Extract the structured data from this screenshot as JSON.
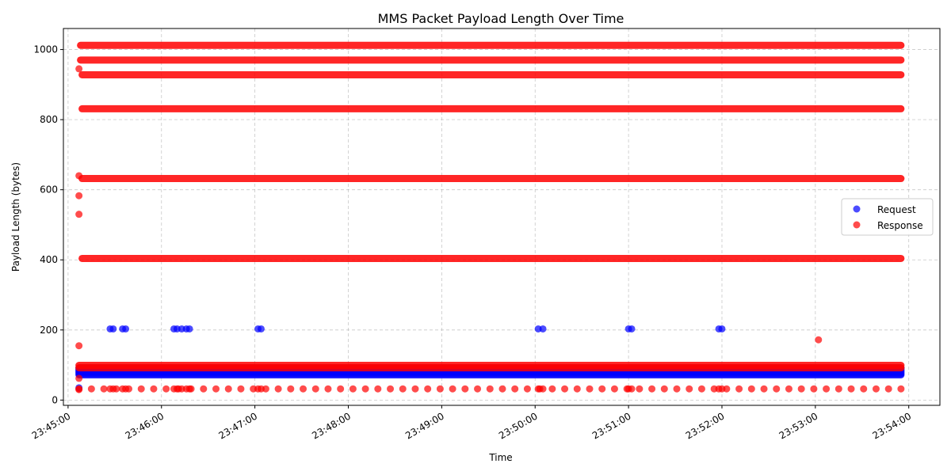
{
  "chart_data": {
    "type": "scatter",
    "title": "MMS Packet Payload Length Over Time",
    "xlabel": "Time",
    "ylabel": "Payload Length (bytes)",
    "xlim": [
      "23:44:57",
      "23:54:20"
    ],
    "ylim": [
      -15,
      1060
    ],
    "x_ticks": [
      "23:45:00",
      "23:46:00",
      "23:47:00",
      "23:48:00",
      "23:49:00",
      "23:50:00",
      "23:51:00",
      "23:52:00",
      "23:53:00",
      "23:54:00"
    ],
    "y_ticks": [
      0,
      200,
      400,
      600,
      800,
      1000
    ],
    "grid": true,
    "legend_position": "center-right",
    "time_range": {
      "start": "23:45:07",
      "end": "23:53:55"
    },
    "series": [
      {
        "name": "Request",
        "color": "#0000ff",
        "alpha": 0.7,
        "bands": [
          {
            "y": 72,
            "start": "23:45:07",
            "end": "23:53:55"
          },
          {
            "y": 76,
            "start": "23:45:07",
            "end": "23:53:55"
          },
          {
            "y": 80,
            "start": "23:45:07",
            "end": "23:53:55"
          },
          {
            "y": 84,
            "start": "23:45:07",
            "end": "23:53:55"
          },
          {
            "y": 88,
            "start": "23:45:07",
            "end": "23:53:55"
          },
          {
            "y": 92,
            "start": "23:45:07",
            "end": "23:53:55"
          }
        ],
        "points": [
          {
            "x": "23:45:07",
            "y": 35
          },
          {
            "x": "23:45:27",
            "y": 203
          },
          {
            "x": "23:45:29",
            "y": 203
          },
          {
            "x": "23:45:35",
            "y": 203
          },
          {
            "x": "23:45:37",
            "y": 203
          },
          {
            "x": "23:46:08",
            "y": 203
          },
          {
            "x": "23:46:10",
            "y": 203
          },
          {
            "x": "23:46:13",
            "y": 203
          },
          {
            "x": "23:46:16",
            "y": 203
          },
          {
            "x": "23:46:18",
            "y": 203
          },
          {
            "x": "23:47:02",
            "y": 203
          },
          {
            "x": "23:47:04",
            "y": 203
          },
          {
            "x": "23:50:02",
            "y": 203
          },
          {
            "x": "23:50:05",
            "y": 203
          },
          {
            "x": "23:51:00",
            "y": 203
          },
          {
            "x": "23:51:02",
            "y": 203
          },
          {
            "x": "23:51:58",
            "y": 203
          },
          {
            "x": "23:52:00",
            "y": 203
          }
        ]
      },
      {
        "name": "Response",
        "color": "#ff0000",
        "alpha": 0.7,
        "bands": [
          {
            "y": 1012,
            "start": "23:45:08",
            "end": "23:53:55"
          },
          {
            "y": 970,
            "start": "23:45:08",
            "end": "23:53:55"
          },
          {
            "y": 928,
            "start": "23:45:09",
            "end": "23:53:55"
          },
          {
            "y": 831,
            "start": "23:45:09",
            "end": "23:53:55"
          },
          {
            "y": 632,
            "start": "23:45:09",
            "end": "23:53:55"
          },
          {
            "y": 404,
            "start": "23:45:09",
            "end": "23:53:55"
          },
          {
            "y": 99,
            "start": "23:45:07",
            "end": "23:53:55"
          },
          {
            "y": 92,
            "start": "23:45:07",
            "end": "23:53:55"
          }
        ],
        "dashes": [
          {
            "y": 32,
            "start": "23:45:07",
            "end": "23:53:55",
            "step_seconds": 8
          }
        ],
        "points": [
          {
            "x": "23:45:07",
            "y": 945
          },
          {
            "x": "23:45:07",
            "y": 640
          },
          {
            "x": "23:45:07",
            "y": 583
          },
          {
            "x": "23:45:07",
            "y": 530
          },
          {
            "x": "23:45:07",
            "y": 155
          },
          {
            "x": "23:45:07",
            "y": 62
          },
          {
            "x": "23:45:07",
            "y": 30
          },
          {
            "x": "23:45:27",
            "y": 32
          },
          {
            "x": "23:45:29",
            "y": 32
          },
          {
            "x": "23:45:35",
            "y": 32
          },
          {
            "x": "23:45:37",
            "y": 32
          },
          {
            "x": "23:46:08",
            "y": 32
          },
          {
            "x": "23:46:10",
            "y": 32
          },
          {
            "x": "23:46:13",
            "y": 32
          },
          {
            "x": "23:46:16",
            "y": 32
          },
          {
            "x": "23:46:18",
            "y": 32
          },
          {
            "x": "23:47:02",
            "y": 32
          },
          {
            "x": "23:47:04",
            "y": 32
          },
          {
            "x": "23:50:02",
            "y": 32
          },
          {
            "x": "23:50:05",
            "y": 32
          },
          {
            "x": "23:51:00",
            "y": 32
          },
          {
            "x": "23:51:02",
            "y": 32
          },
          {
            "x": "23:51:58",
            "y": 32
          },
          {
            "x": "23:52:00",
            "y": 32
          },
          {
            "x": "23:53:02",
            "y": 172
          }
        ]
      }
    ]
  }
}
